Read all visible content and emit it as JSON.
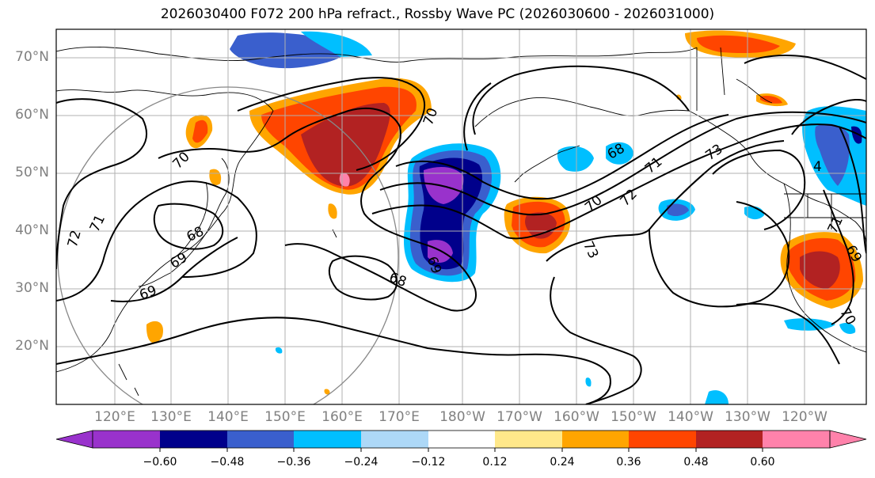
{
  "title": "2026030400 F072 200 hPa refract., Rossby Wave PC (2026030600 - 2026031000)",
  "lat_labels": [
    "70°N",
    "60°N",
    "50°N",
    "40°N",
    "30°N",
    "20°N"
  ],
  "lon_labels": [
    "120°E",
    "130°E",
    "140°E",
    "150°E",
    "160°E",
    "170°E",
    "180°W",
    "170°W",
    "160°W",
    "150°W",
    "140°W",
    "130°W",
    "120°W"
  ],
  "colorbar": {
    "ticks": [
      "−0.60",
      "−0.48",
      "−0.36",
      "−0.24",
      "−0.12",
      "0.12",
      "0.24",
      "0.36",
      "0.48",
      "0.60"
    ],
    "colors": [
      "#9932CC",
      "#00008B",
      "#3A5FCD",
      "#00BFFF",
      "#ADD8F7",
      "#FFFFFF",
      "#FFE88A",
      "#FFA500",
      "#FF4500",
      "#B22222",
      "#FF82AB"
    ]
  },
  "contour_labels": [
    "72",
    "71",
    "70",
    "69",
    "68",
    "69",
    "68",
    "69",
    "70",
    "68",
    "71",
    "72",
    "73",
    "70",
    "73",
    "71",
    "4",
    "69",
    "70"
  ]
}
